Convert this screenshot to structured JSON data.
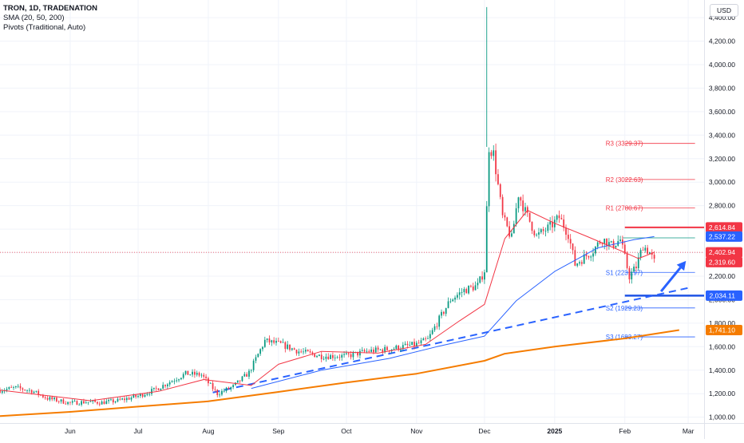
{
  "legend": {
    "title": "TRON, 1D, TRADENATION",
    "indicator1": "SMA (20, 50, 200)",
    "indicator2": "Pivots (Traditional, Auto)"
  },
  "currency_button": "USD",
  "colors": {
    "up": "#089981",
    "down": "#f23645",
    "sma20": "#f23645",
    "sma50": "#2962ff",
    "sma200": "#f57c00",
    "trend": "#2962ff",
    "pivot_r": "#f23645",
    "pivot_s": "#2962ff",
    "grid": "#f0f3fa",
    "axis_text": "#131722"
  },
  "chart_data": {
    "type": "candlestick",
    "y_axis": {
      "min": 950,
      "max": 4550,
      "ticks": [
        "1,000.00",
        "1,200.00",
        "1,400.00",
        "1,600.00",
        "1,800.00",
        "2,000.00",
        "2,200.00",
        "2,400.00",
        "2,600.00",
        "2,800.00",
        "3,000.00",
        "3,200.00",
        "3,400.00",
        "3,600.00",
        "3,800.00",
        "4,000.00",
        "4,200.00",
        "4,400.00"
      ],
      "tick_values": [
        1000,
        1200,
        1400,
        1600,
        1800,
        2000,
        2200,
        2400,
        2600,
        2800,
        3000,
        3200,
        3400,
        3600,
        3800,
        4000,
        4200,
        4400
      ]
    },
    "x_axis": {
      "start_date": "2024-05-01",
      "end_date": "2025-03-08",
      "labels": [
        {
          "date": "2024-06-01",
          "text": "Jun",
          "bold": false
        },
        {
          "date": "2024-07-01",
          "text": "Jul",
          "bold": false
        },
        {
          "date": "2024-08-01",
          "text": "Aug",
          "bold": false
        },
        {
          "date": "2024-09-01",
          "text": "Sep",
          "bold": false
        },
        {
          "date": "2024-10-01",
          "text": "Oct",
          "bold": false
        },
        {
          "date": "2024-11-01",
          "text": "Nov",
          "bold": false
        },
        {
          "date": "2024-12-01",
          "text": "Dec",
          "bold": false
        },
        {
          "date": "2025-01-01",
          "text": "2025",
          "bold": true
        },
        {
          "date": "2025-02-01",
          "text": "Feb",
          "bold": false
        },
        {
          "date": "2025-03-01",
          "text": "Mar",
          "bold": false
        }
      ]
    },
    "price_path": [
      [
        "2024-05-01",
        1230
      ],
      [
        "2024-05-08",
        1250
      ],
      [
        "2024-05-15",
        1225
      ],
      [
        "2024-05-22",
        1160
      ],
      [
        "2024-06-01",
        1120
      ],
      [
        "2024-06-08",
        1130
      ],
      [
        "2024-06-15",
        1125
      ],
      [
        "2024-06-22",
        1140
      ],
      [
        "2024-07-01",
        1180
      ],
      [
        "2024-07-08",
        1230
      ],
      [
        "2024-07-15",
        1300
      ],
      [
        "2024-07-22",
        1370
      ],
      [
        "2024-07-29",
        1360
      ],
      [
        "2024-08-05",
        1200
      ],
      [
        "2024-08-12",
        1260
      ],
      [
        "2024-08-19",
        1380
      ],
      [
        "2024-08-26",
        1650
      ],
      [
        "2024-09-02",
        1620
      ],
      [
        "2024-09-10",
        1560
      ],
      [
        "2024-09-20",
        1520
      ],
      [
        "2024-10-01",
        1520
      ],
      [
        "2024-10-10",
        1560
      ],
      [
        "2024-10-20",
        1580
      ],
      [
        "2024-11-01",
        1620
      ],
      [
        "2024-11-06",
        1660
      ],
      [
        "2024-11-10",
        1800
      ],
      [
        "2024-11-16",
        2000
      ],
      [
        "2024-11-22",
        2080
      ],
      [
        "2024-11-28",
        2120
      ],
      [
        "2024-12-01",
        2250
      ],
      [
        "2024-12-03",
        3300
      ],
      [
        "2024-12-05",
        3240
      ],
      [
        "2024-12-09",
        2700
      ],
      [
        "2024-12-13",
        2520
      ],
      [
        "2024-12-16",
        2900
      ],
      [
        "2024-12-19",
        2750
      ],
      [
        "2024-12-24",
        2540
      ],
      [
        "2024-12-30",
        2620
      ],
      [
        "2025-01-03",
        2700
      ],
      [
        "2025-01-07",
        2560
      ],
      [
        "2025-01-10",
        2300
      ],
      [
        "2025-01-14",
        2360
      ],
      [
        "2025-01-18",
        2420
      ],
      [
        "2025-01-22",
        2520
      ],
      [
        "2025-01-26",
        2460
      ],
      [
        "2025-01-30",
        2510
      ],
      [
        "2025-02-03",
        2200
      ],
      [
        "2025-02-06",
        2280
      ],
      [
        "2025-02-09",
        2460
      ],
      [
        "2025-02-12",
        2400
      ],
      [
        "2025-02-14",
        2320
      ]
    ],
    "sma20": [
      [
        "2024-05-01",
        1230
      ],
      [
        "2024-06-10",
        1140
      ],
      [
        "2024-07-10",
        1220
      ],
      [
        "2024-07-30",
        1320
      ],
      [
        "2024-08-20",
        1270
      ],
      [
        "2024-09-01",
        1450
      ],
      [
        "2024-09-20",
        1560
      ],
      [
        "2024-10-15",
        1545
      ],
      [
        "2024-11-05",
        1620
      ],
      [
        "2024-11-20",
        1820
      ],
      [
        "2024-12-01",
        1960
      ],
      [
        "2024-12-10",
        2520
      ],
      [
        "2024-12-20",
        2760
      ],
      [
        "2025-01-01",
        2650
      ],
      [
        "2025-01-15",
        2540
      ],
      [
        "2025-01-31",
        2410
      ],
      [
        "2025-02-07",
        2350
      ],
      [
        "2025-02-14",
        2402
      ]
    ],
    "sma50": [
      [
        "2024-08-20",
        1245
      ],
      [
        "2024-09-20",
        1400
      ],
      [
        "2024-10-20",
        1500
      ],
      [
        "2024-11-10",
        1600
      ],
      [
        "2024-12-01",
        1690
      ],
      [
        "2024-12-15",
        1990
      ],
      [
        "2025-01-01",
        2240
      ],
      [
        "2025-01-20",
        2440
      ],
      [
        "2025-02-05",
        2510
      ],
      [
        "2025-02-14",
        2537
      ]
    ],
    "sma200": [
      [
        "2024-05-01",
        1010
      ],
      [
        "2024-06-01",
        1045
      ],
      [
        "2024-07-01",
        1090
      ],
      [
        "2024-08-01",
        1135
      ],
      [
        "2024-09-01",
        1215
      ],
      [
        "2024-10-01",
        1295
      ],
      [
        "2024-11-01",
        1370
      ],
      [
        "2024-12-01",
        1480
      ],
      [
        "2024-12-10",
        1540
      ],
      [
        "2025-01-01",
        1600
      ],
      [
        "2025-02-01",
        1670
      ],
      [
        "2025-02-25",
        1741
      ]
    ],
    "trendline": [
      [
        "2024-08-03",
        1210
      ],
      [
        "2025-03-01",
        2100
      ]
    ],
    "pivots": [
      {
        "label": "R3 (3329.37)",
        "value": 3329.37,
        "kind": "R"
      },
      {
        "label": "R2 (3022.63)",
        "value": 3022.63,
        "kind": "R"
      },
      {
        "label": "R1 (2780.67)",
        "value": 2780.67,
        "kind": "R"
      },
      {
        "label": "S1 (2231.97)",
        "value": 2231.97,
        "kind": "S"
      },
      {
        "label": "S2 (1929.23)",
        "value": 1929.23,
        "kind": "S"
      },
      {
        "label": "S3 (1683.27)",
        "value": 1683.27,
        "kind": "S"
      }
    ],
    "pivot_line_start": "2025-02-01",
    "pivot_line_end": "2025-03-04",
    "p_level": {
      "value": 2526,
      "start": "2025-01-31",
      "end": "2025-03-04"
    },
    "resistance": {
      "value": 2614.84,
      "start": "2025-02-01",
      "end": "2025-03-06"
    },
    "support": {
      "value": 2034.11,
      "start": "2025-02-01",
      "end": "2025-03-08"
    },
    "arrow": {
      "from": [
        "2025-02-17",
        2070
      ],
      "to": [
        "2025-02-28",
        2330
      ]
    },
    "current_price_line": 2402.94,
    "price_labels": [
      {
        "text": "2,614.84",
        "value": 2614.84,
        "color": "#f23645"
      },
      {
        "text": "2,537.22",
        "value": 2537.22,
        "color": "#2962ff"
      },
      {
        "text": "2,402.94",
        "value": 2402.94,
        "color": "#f23645"
      },
      {
        "text": "2,319.60",
        "value": 2319.6,
        "color": "#f23645"
      },
      {
        "text": "2,034.11",
        "value": 2034.11,
        "color": "#2962ff"
      },
      {
        "text": "1,741.10",
        "value": 1741.1,
        "color": "#f57c00"
      }
    ]
  }
}
